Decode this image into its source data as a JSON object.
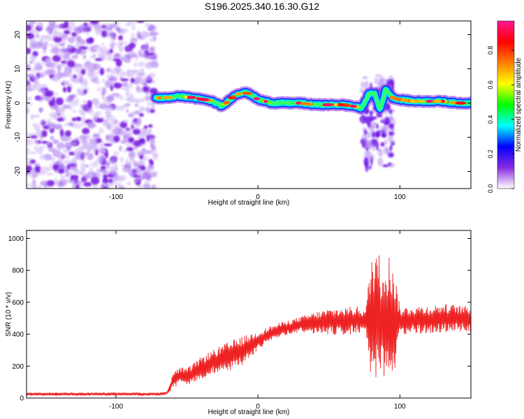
{
  "title": "S196.2025.340.16.30.G12",
  "chart_data": [
    {
      "type": "heatmap",
      "title": "S196.2025.340.16.30.G12",
      "xlabel": "Height of straight line (km)",
      "ylabel": "Frequency (Hz)",
      "xlim": [
        -163,
        150
      ],
      "ylim": [
        -25,
        24
      ],
      "xticks": [
        -100,
        0,
        100
      ],
      "yticks": [
        -20,
        -10,
        0,
        10,
        20
      ],
      "colorbar": {
        "label": "Normalized spectral amplitude",
        "range": [
          0,
          0.97
        ],
        "ticks": [
          "0.0",
          "0.2",
          "0.4",
          "0.6",
          "0.8"
        ],
        "tick_values": [
          0,
          0.2,
          0.4,
          0.6,
          0.8
        ],
        "colors": [
          "#ffffff",
          "#8a2be2",
          "#0000ff",
          "#00ffff",
          "#00ff00",
          "#ffff00",
          "#ff7f00",
          "#ff0000",
          "#ff1493"
        ]
      },
      "noise_region_x": [
        -163,
        -72
      ],
      "signal_ridge": {
        "x": [
          -72,
          -65,
          -55,
          -45,
          -38,
          -32,
          -25,
          -20,
          -15,
          -10,
          -5,
          0,
          10,
          20,
          30,
          40,
          50,
          60,
          68,
          73,
          78,
          82,
          86,
          90,
          95,
          100,
          110,
          120,
          130,
          140,
          150
        ],
        "frequency_hz": [
          1.5,
          1.5,
          2.0,
          1.5,
          1.0,
          0.5,
          -1.0,
          1.0,
          2.5,
          3.2,
          2.5,
          1.0,
          0.0,
          0.0,
          0.0,
          -0.5,
          -0.5,
          -0.5,
          -1.0,
          -1.5,
          2.5,
          3.0,
          -2.0,
          4.0,
          1.5,
          1.0,
          0.5,
          0.5,
          0.5,
          0.0,
          0.0
        ]
      },
      "disturbance": {
        "x_range": [
          73,
          95
        ],
        "frequency_range_hz": [
          -19,
          8
        ]
      }
    },
    {
      "type": "line",
      "xlabel": "Height of straight line (km)",
      "ylabel": "SNR (10 * v/v)",
      "xlim": [
        -163,
        150
      ],
      "ylim": [
        0,
        1050
      ],
      "xticks": [
        -100,
        0,
        100
      ],
      "yticks": [
        0,
        200,
        400,
        600,
        800,
        1000
      ],
      "color": "#ee2222",
      "envelope": {
        "x": [
          -163,
          -140,
          -100,
          -80,
          -70,
          -64,
          -60,
          -55,
          -50,
          -40,
          -30,
          -20,
          -10,
          0,
          10,
          20,
          30,
          40,
          50,
          60,
          70,
          76,
          80,
          83,
          87,
          90,
          95,
          100,
          110,
          120,
          130,
          140,
          150
        ],
        "mean": [
          25,
          25,
          25,
          25,
          25,
          30,
          110,
          140,
          130,
          190,
          230,
          260,
          300,
          360,
          410,
          440,
          460,
          470,
          480,
          480,
          490,
          480,
          500,
          500,
          480,
          480,
          480,
          480,
          490,
          490,
          500,
          500,
          490
        ],
        "amplitude": [
          10,
          10,
          10,
          10,
          10,
          10,
          50,
          55,
          55,
          70,
          80,
          95,
          90,
          60,
          45,
          45,
          50,
          70,
          80,
          90,
          85,
          80,
          420,
          480,
          380,
          450,
          400,
          90,
          90,
          90,
          90,
          85,
          85
        ]
      }
    }
  ]
}
